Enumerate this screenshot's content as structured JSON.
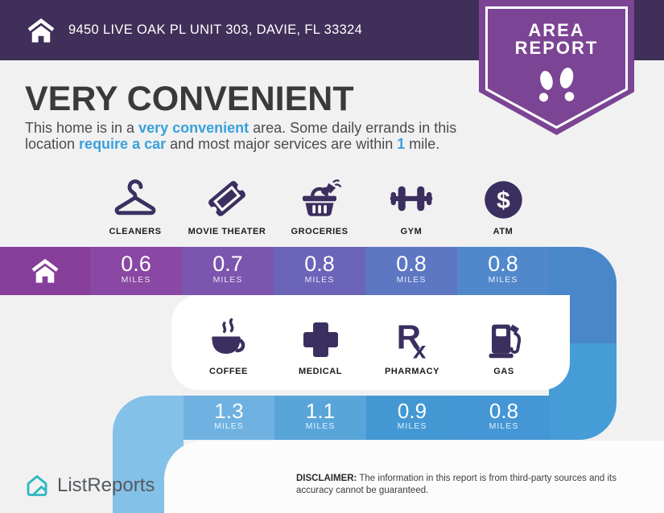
{
  "theme": {
    "page_bg": "#F1F1F2",
    "header_bg": "#402F58",
    "badge_purple": "#7B4494",
    "icon_navy": "#3B2F5F",
    "headline_color": "#3A393B",
    "body_color": "#4C4C4E",
    "label_color": "#1B1B1D",
    "card_bg": "#FFFFFF",
    "footer_card_bg": "#FCFCFD",
    "brand_teal": "#2EB6C0",
    "brand_text": "#55595F"
  },
  "header": {
    "address": "9450 LIVE OAK PL UNIT 303, DAVIE, FL 33324"
  },
  "badge": {
    "line1": "AREA",
    "line2": "REPORT"
  },
  "headline": "VERY CONVENIENT",
  "intro": {
    "accent_color": "#38A0DC",
    "lines": [
      [
        {
          "t": "This home is in a "
        },
        {
          "t": "very convenient",
          "b": true
        },
        {
          "t": " area. Some daily errands in this"
        }
      ],
      [
        {
          "t": "location "
        },
        {
          "t": "require a car",
          "b": true
        },
        {
          "t": " and most major services are within "
        },
        {
          "t": "1",
          "b": true
        },
        {
          "t": " mile."
        }
      ]
    ]
  },
  "places": {
    "row1": [
      {
        "label": "CLEANERS",
        "icon": "hanger-icon"
      },
      {
        "label": "MOVIE THEATER",
        "icon": "ticket-icon"
      },
      {
        "label": "GROCERIES",
        "icon": "grocery-basket-icon"
      },
      {
        "label": "GYM",
        "icon": "dumbbell-icon"
      },
      {
        "label": "ATM",
        "icon": "dollar-circle-icon"
      }
    ],
    "row2": [
      {
        "label": "COFFEE",
        "icon": "coffee-cup-icon"
      },
      {
        "label": "MEDICAL",
        "icon": "medical-cross-icon"
      },
      {
        "label": "PHARMACY",
        "icon": "rx-icon"
      },
      {
        "label": "GAS",
        "icon": "gas-pump-icon"
      }
    ]
  },
  "bar1": {
    "home_color": "#873E9B",
    "segments": [
      {
        "value": "0.6",
        "unit": "MILES",
        "color": "#8A47A3"
      },
      {
        "value": "0.7",
        "unit": "MILES",
        "color": "#7C55AE"
      },
      {
        "value": "0.8",
        "unit": "MILES",
        "color": "#6C64B8"
      },
      {
        "value": "0.8",
        "unit": "MILES",
        "color": "#5D77C3"
      },
      {
        "value": "0.8",
        "unit": "MILES",
        "color": "#5188CC"
      }
    ]
  },
  "bar2": {
    "segments": [
      {
        "value": "1.3",
        "unit": "MILES",
        "color": "#6FB2E1"
      },
      {
        "value": "1.1",
        "unit": "MILES",
        "color": "#58A5DA"
      },
      {
        "value": "0.9",
        "unit": "MILES",
        "color": "#4398D4"
      },
      {
        "value": "0.8",
        "unit": "MILES",
        "color": "#4496D4"
      }
    ]
  },
  "connector": {
    "right_top": "#4A87CA",
    "right_bottom": "#469CD7",
    "left": "#84C1E8"
  },
  "footer": {
    "brand": "ListReports",
    "disclaimer_label": "DISCLAIMER:",
    "disclaimer_line1": " The information in this report is from third-party sources and its",
    "disclaimer_line2": "accuracy cannot be guaranteed."
  }
}
